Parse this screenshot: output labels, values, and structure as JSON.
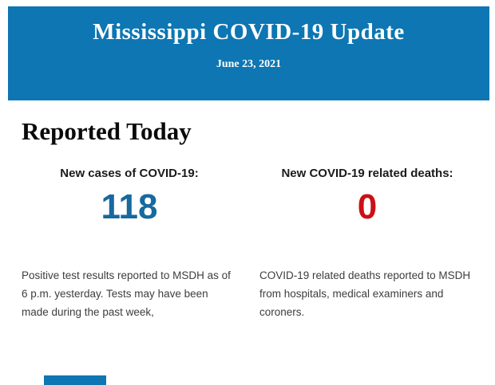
{
  "banner": {
    "title": "Mississippi COVID-19 Update",
    "date": "June 23, 2021",
    "bg_color": "#0d76b3",
    "text_color": "#ffffff"
  },
  "main": {
    "heading": "Reported Today",
    "stats": [
      {
        "label": "New cases of COVID-19:",
        "value": "118",
        "value_color": "#17699e",
        "description": "Positive test results reported to MSDH as of 6 p.m. yesterday. Tests may have been made during the past week,"
      },
      {
        "label": "New COVID-19 related deaths:",
        "value": "0",
        "value_color": "#cb1016",
        "description": "COVID-19 related deaths reported to MSDH from hospitals, medical examiners and coroners."
      }
    ]
  },
  "footer": {
    "accent_color": "#0d76b3"
  }
}
